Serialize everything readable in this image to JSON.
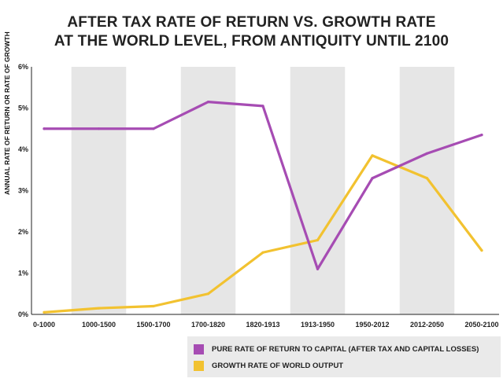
{
  "chart_data": {
    "type": "line",
    "title_lines": [
      "AFTER TAX RATE OF RETURN VS. GROWTH RATE",
      "AT THE WORLD LEVEL, FROM ANTIQUITY UNTIL 2100"
    ],
    "ylabel": "ANNUAL RATE OF RETURN OR RATE OF GROWTH",
    "categories": [
      "0-1000",
      "1000-1500",
      "1500-1700",
      "1700-1820",
      "1820-1913",
      "1913-1950",
      "1950-2012",
      "2012-2050",
      "2050-2100"
    ],
    "y_ticks": [
      "0%",
      "1%",
      "2%",
      "3%",
      "4%",
      "5%",
      "6%"
    ],
    "ylim": [
      0,
      6
    ],
    "grid": false,
    "shaded_bands": [
      "1000-1500",
      "1700-1820",
      "1913-1950",
      "2012-2050"
    ],
    "legend_position": "bottom-right",
    "series": [
      {
        "name": "PURE RATE OF RETURN TO CAPITAL (AFTER TAX AND CAPITAL LOSSES)",
        "color": "#a64cb3",
        "values": [
          4.5,
          4.5,
          4.5,
          5.15,
          5.05,
          1.1,
          3.3,
          3.9,
          4.35
        ]
      },
      {
        "name": "GROWTH RATE OF WORLD OUTPUT",
        "color": "#f2c230",
        "values": [
          0.05,
          0.15,
          0.2,
          0.5,
          1.5,
          1.8,
          3.85,
          3.3,
          1.55
        ]
      }
    ]
  }
}
